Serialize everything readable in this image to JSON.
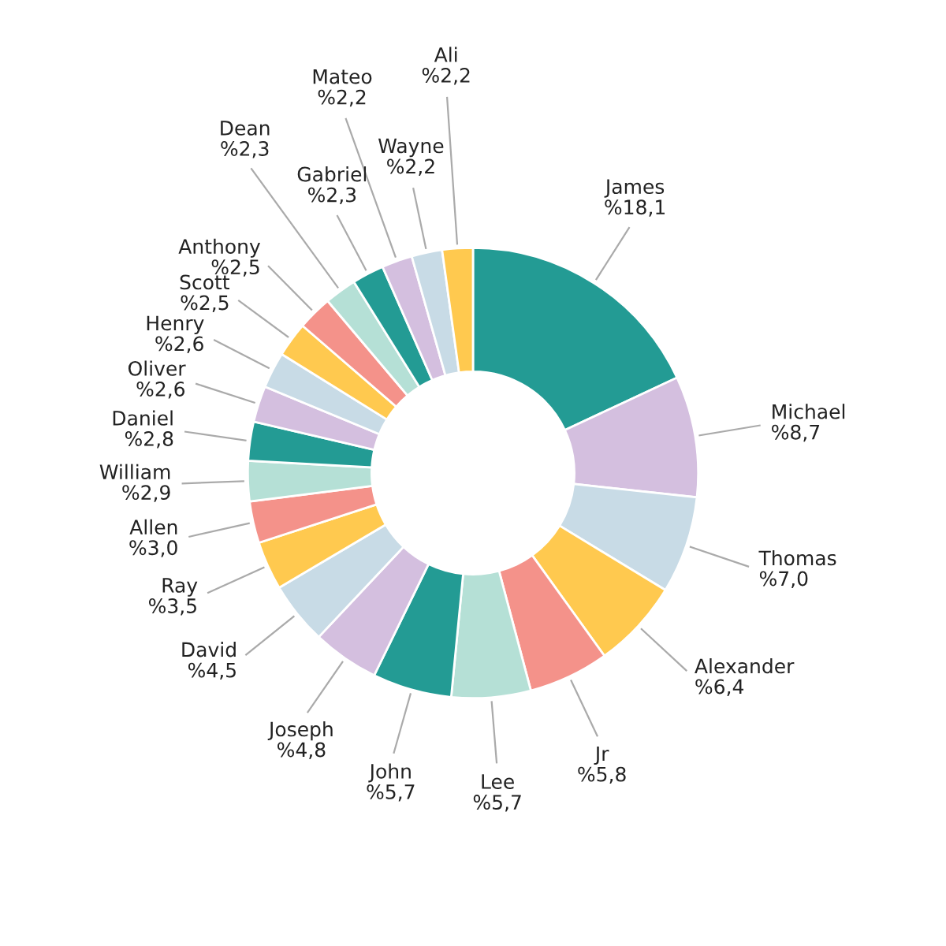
{
  "chart_data": {
    "type": "donut",
    "categories": [
      "James",
      "Michael",
      "Thomas",
      "Alexander",
      "Jr",
      "Lee",
      "John",
      "Joseph",
      "David",
      "Ray",
      "Allen",
      "William",
      "Daniel",
      "Oliver",
      "Henry",
      "Scott",
      "Anthony",
      "Dean",
      "Gabriel",
      "Mateo",
      "Wayne",
      "Ali"
    ],
    "values": [
      18.1,
      8.7,
      7.0,
      6.4,
      5.8,
      5.7,
      5.7,
      4.8,
      4.5,
      3.5,
      3.0,
      2.9,
      2.8,
      2.6,
      2.6,
      2.5,
      2.5,
      2.3,
      2.3,
      2.2,
      2.2,
      2.2
    ],
    "value_labels": [
      "%18,1",
      "%8,7",
      "%7,0",
      "%6,4",
      "%5,8",
      "%5,7",
      "%5,7",
      "%4,8",
      "%4,5",
      "%3,5",
      "%3,0",
      "%2,9",
      "%2,8",
      "%2,6",
      "%2,6",
      "%2,5",
      "%2,5",
      "%2,3",
      "%2,3",
      "%2,2",
      "%2,2",
      "%2,2"
    ],
    "colors": [
      "#239b94",
      "#d4bfdf",
      "#c8dbe6",
      "#ffc94f",
      "#f4928a",
      "#b5e0d6",
      "#239b94",
      "#d4bfdf",
      "#c8dbe6",
      "#ffc94f",
      "#f4928a",
      "#b5e0d6",
      "#239b94",
      "#d4bfdf",
      "#c8dbe6",
      "#ffc94f",
      "#f4928a",
      "#b5e0d6",
      "#239b94",
      "#d4bfdf",
      "#c8dbe6",
      "#ffc94f"
    ]
  }
}
